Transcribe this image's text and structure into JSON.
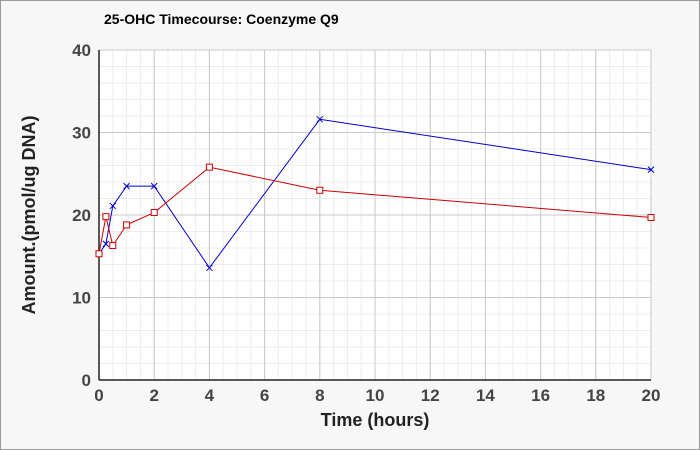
{
  "chart_data": {
    "type": "line",
    "title": "25-OHC Timecourse: Coenzyme Q9",
    "xlabel": "Time (hours)",
    "ylabel": "Amount.(pmol/ug DNA)",
    "xlim": [
      0,
      20
    ],
    "ylim": [
      0,
      40
    ],
    "xticks": [
      0,
      2,
      4,
      6,
      8,
      10,
      12,
      14,
      16,
      18,
      20
    ],
    "yticks": [
      0,
      10,
      20,
      30,
      40
    ],
    "grid": true,
    "legend": "none",
    "series": [
      {
        "color": "#0000cc",
        "marker": "x",
        "points": [
          [
            0,
            15.3
          ],
          [
            0.25,
            16.5
          ],
          [
            0.5,
            21.1
          ],
          [
            1,
            23.5
          ],
          [
            2,
            23.5
          ],
          [
            4,
            13.6
          ],
          [
            8,
            31.6
          ],
          [
            20,
            25.5
          ]
        ]
      },
      {
        "color": "#cc0000",
        "marker": "square",
        "points": [
          [
            0,
            15.3
          ],
          [
            0.25,
            19.8
          ],
          [
            0.5,
            16.3
          ],
          [
            1,
            18.8
          ],
          [
            2,
            20.3
          ],
          [
            4,
            25.8
          ],
          [
            8,
            23.0
          ],
          [
            20,
            19.7
          ]
        ]
      }
    ]
  }
}
